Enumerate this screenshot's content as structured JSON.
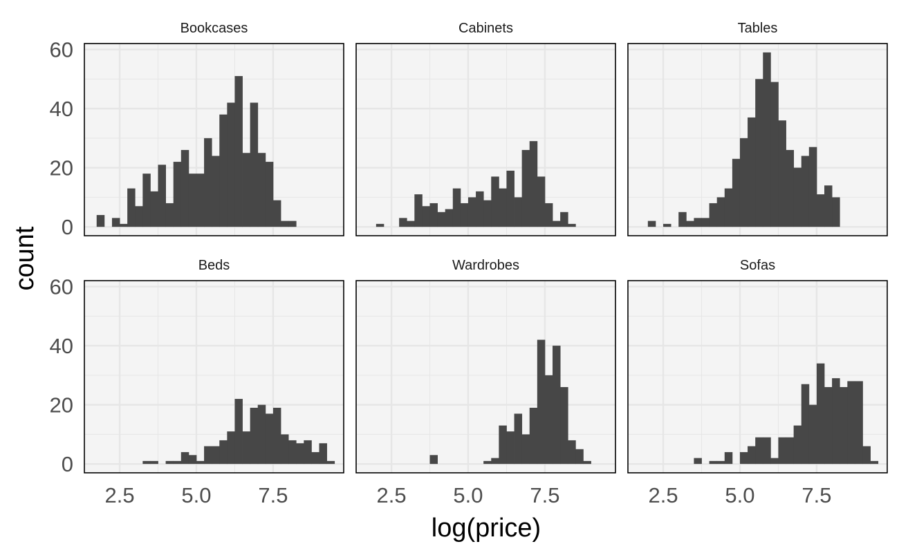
{
  "chart_data": {
    "type": "bar",
    "subtype": "faceted-histogram",
    "xlabel": "log(price)",
    "ylabel": "count",
    "xlim": [
      1.35,
      9.8
    ],
    "ylim": [
      -3,
      62
    ],
    "x_ticks": [
      "2.5",
      "5.0",
      "7.5"
    ],
    "y_ticks": [
      "0",
      "20",
      "40",
      "60"
    ],
    "grid": true,
    "facet_layout": "2 rows x 3 columns",
    "bin_start": 1.75,
    "bin_width": 0.25,
    "colors": {
      "bar": "#474747",
      "panel_bg": "#f4f4f4",
      "grid": "#e6e6e6",
      "border": "#000000"
    },
    "facets": [
      {
        "name": "Bookcases",
        "counts": [
          4,
          0,
          3,
          1,
          13,
          7,
          18,
          12,
          21,
          8,
          22,
          26,
          18,
          18,
          30,
          24,
          38,
          42,
          51,
          25,
          42,
          25,
          22,
          9,
          2,
          2
        ]
      },
      {
        "name": "Cabinets",
        "counts": [
          0,
          1,
          0,
          0,
          3,
          2,
          11,
          7,
          8,
          5,
          6,
          13,
          8,
          10,
          12,
          9,
          17,
          13,
          19,
          10,
          26,
          29,
          17,
          8,
          2,
          5,
          1
        ]
      },
      {
        "name": "Tables",
        "counts": [
          0,
          2,
          0,
          1,
          0,
          5,
          2,
          3,
          3,
          8,
          10,
          13,
          23,
          30,
          37,
          50,
          59,
          49,
          36,
          26,
          20,
          24,
          27,
          11,
          14,
          10
        ]
      },
      {
        "name": "Beds",
        "counts": [
          0,
          0,
          0,
          0,
          0,
          0,
          1,
          1,
          0,
          1,
          1,
          4,
          3,
          1,
          6,
          6,
          8,
          11,
          22,
          11,
          19,
          20,
          17,
          19,
          10,
          8,
          7,
          8,
          4,
          7,
          1
        ]
      },
      {
        "name": "Wardrobes",
        "counts": [
          0,
          0,
          0,
          0,
          0,
          0,
          0,
          0,
          3,
          0,
          0,
          0,
          0,
          0,
          0,
          1,
          2,
          13,
          11,
          17,
          10,
          19,
          42,
          30,
          40,
          26,
          8,
          5,
          1
        ]
      },
      {
        "name": "Sofas",
        "counts": [
          0,
          0,
          0,
          0,
          0,
          0,
          0,
          2,
          0,
          1,
          1,
          4,
          0,
          4,
          6,
          9,
          9,
          2,
          9,
          9,
          13,
          27,
          20,
          34,
          26,
          29,
          26,
          28,
          28,
          6,
          1
        ]
      }
    ]
  }
}
